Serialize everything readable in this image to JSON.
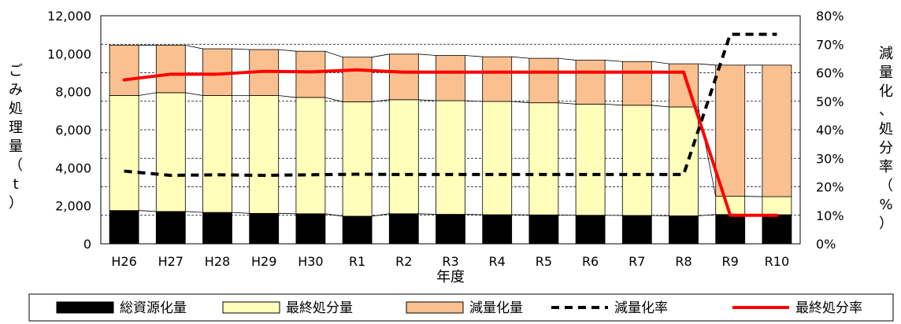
{
  "chart_data": {
    "type": "bar",
    "stacked": true,
    "categories": [
      "H26",
      "H27",
      "H28",
      "H29",
      "H30",
      "R1",
      "R2",
      "R3",
      "R4",
      "R5",
      "R6",
      "R7",
      "R8",
      "R9",
      "R10"
    ],
    "series": [
      {
        "name": "総資源化量",
        "type": "bar",
        "axis": "left",
        "color": "#000000",
        "values": [
          1750,
          1700,
          1650,
          1600,
          1580,
          1450,
          1580,
          1550,
          1530,
          1520,
          1500,
          1490,
          1470,
          1540,
          1530
        ]
      },
      {
        "name": "最終処分量",
        "type": "bar",
        "axis": "left",
        "color": "#FFFFBB",
        "values": [
          6050,
          6250,
          6150,
          6200,
          6120,
          6020,
          6000,
          5980,
          5960,
          5900,
          5850,
          5800,
          5730,
          960,
          950
        ]
      },
      {
        "name": "減量化量",
        "type": "bar",
        "axis": "left",
        "color": "#FAC090",
        "values": [
          2650,
          2500,
          2460,
          2420,
          2430,
          2350,
          2400,
          2380,
          2350,
          2340,
          2310,
          2300,
          2270,
          6900,
          6920
        ]
      },
      {
        "name": "減量化率",
        "type": "line",
        "axis": "right",
        "color": "#000000",
        "dash": true,
        "values": [
          25.5,
          24.0,
          24.2,
          24.0,
          24.2,
          24.4,
          24.3,
          24.3,
          24.3,
          24.3,
          24.3,
          24.3,
          24.3,
          73.5,
          73.5
        ]
      },
      {
        "name": "最終処分率",
        "type": "line",
        "axis": "right",
        "color": "#FF0000",
        "dash": false,
        "values": [
          57.5,
          59.5,
          59.5,
          60.5,
          60.3,
          61.0,
          60.2,
          60.2,
          60.2,
          60.2,
          60.2,
          60.2,
          60.2,
          10.0,
          10.0
        ]
      }
    ],
    "xlabel": "年度",
    "ylabel": "ごみ処理量（t）",
    "ylabel_right": "減量化、処分率（%）",
    "ylim": [
      0,
      12000
    ],
    "yticks": [
      "0",
      "2,000",
      "4,000",
      "6,000",
      "8,000",
      "10,000",
      "12,000"
    ],
    "ylim_right": [
      0,
      80
    ],
    "yticks_right": [
      "0%",
      "10%",
      "20%",
      "30%",
      "40%",
      "50%",
      "60%",
      "70%",
      "80%"
    ],
    "grid": true,
    "legend_position": "bottom"
  }
}
